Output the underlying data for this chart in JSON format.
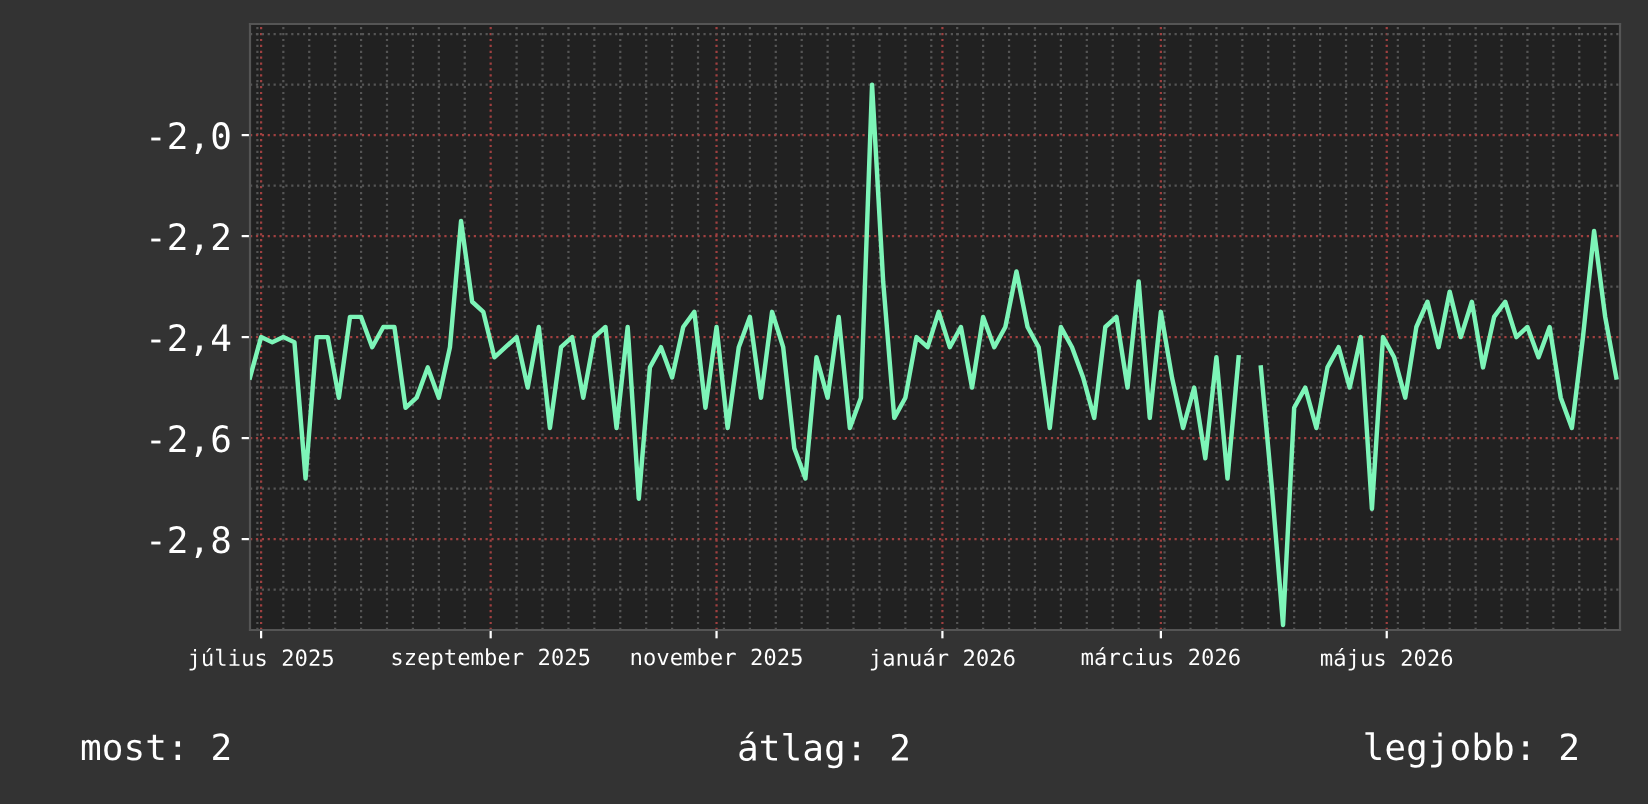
{
  "chart_data": {
    "type": "line",
    "x": [
      "2025-06-28",
      "2025-07-01",
      "2025-07-04",
      "2025-07-07",
      "2025-07-10",
      "2025-07-13",
      "2025-07-16",
      "2025-07-19",
      "2025-07-22",
      "2025-07-25",
      "2025-07-28",
      "2025-07-31",
      "2025-08-03",
      "2025-08-06",
      "2025-08-09",
      "2025-08-12",
      "2025-08-15",
      "2025-08-18",
      "2025-08-21",
      "2025-08-24",
      "2025-08-27",
      "2025-08-30",
      "2025-09-02",
      "2025-09-05",
      "2025-09-08",
      "2025-09-11",
      "2025-09-14",
      "2025-09-17",
      "2025-09-20",
      "2025-09-23",
      "2025-09-26",
      "2025-09-29",
      "2025-10-02",
      "2025-10-05",
      "2025-10-08",
      "2025-10-11",
      "2025-10-14",
      "2025-10-17",
      "2025-10-20",
      "2025-10-23",
      "2025-10-26",
      "2025-10-29",
      "2025-11-01",
      "2025-11-04",
      "2025-11-07",
      "2025-11-10",
      "2025-11-13",
      "2025-11-16",
      "2025-11-19",
      "2025-11-22",
      "2025-11-25",
      "2025-11-28",
      "2025-12-01",
      "2025-12-04",
      "2025-12-07",
      "2025-12-10",
      "2025-12-13",
      "2025-12-16",
      "2025-12-19",
      "2025-12-22",
      "2025-12-25",
      "2025-12-28",
      "2025-12-31",
      "2026-01-03",
      "2026-01-06",
      "2026-01-09",
      "2026-01-12",
      "2026-01-15",
      "2026-01-18",
      "2026-01-21",
      "2026-01-24",
      "2026-01-27",
      "2026-01-30",
      "2026-02-02",
      "2026-02-05",
      "2026-02-08",
      "2026-02-11",
      "2026-02-14",
      "2026-02-17",
      "2026-02-20",
      "2026-02-23",
      "2026-02-26",
      "2026-03-01",
      "2026-03-04",
      "2026-03-07",
      "2026-03-10",
      "2026-03-13",
      "2026-03-16",
      "2026-03-19",
      "2026-03-22",
      "2026-03-25",
      "2026-03-28",
      "2026-03-31",
      "2026-04-03",
      "2026-04-06",
      "2026-04-09",
      "2026-04-12",
      "2026-04-15",
      "2026-04-18",
      "2026-04-21",
      "2026-04-24",
      "2026-04-27",
      "2026-04-30",
      "2026-05-03",
      "2026-05-06",
      "2026-05-09",
      "2026-05-12",
      "2026-05-15",
      "2026-05-18",
      "2026-05-21",
      "2026-05-24",
      "2026-05-27",
      "2026-05-30",
      "2026-06-02",
      "2026-06-05",
      "2026-06-08",
      "2026-06-11",
      "2026-06-14",
      "2026-06-17",
      "2026-06-20",
      "2026-06-23",
      "2026-06-26",
      "2026-06-29",
      "2026-07-02"
    ],
    "series": [
      {
        "color": "#7df5b8",
        "values": [
          -2.48,
          -2.4,
          -2.41,
          -2.4,
          -2.41,
          -2.68,
          -2.4,
          -2.4,
          -2.52,
          -2.36,
          -2.36,
          -2.42,
          -2.38,
          -2.38,
          -2.54,
          -2.52,
          -2.46,
          -2.52,
          -2.42,
          -2.17,
          -2.33,
          -2.35,
          -2.44,
          -2.42,
          -2.4,
          -2.5,
          -2.38,
          -2.58,
          -2.42,
          -2.4,
          -2.52,
          -2.4,
          -2.38,
          -2.58,
          -2.38,
          -2.72,
          -2.46,
          -2.42,
          -2.48,
          -2.38,
          -2.35,
          -2.54,
          -2.38,
          -2.58,
          -2.42,
          -2.36,
          -2.52,
          -2.35,
          -2.42,
          -2.62,
          -2.68,
          -2.44,
          -2.52,
          -2.36,
          -2.58,
          -2.52,
          -1.9,
          -2.29,
          -2.56,
          -2.52,
          -2.4,
          -2.42,
          -2.35,
          -2.42,
          -2.38,
          -2.5,
          -2.36,
          -2.42,
          -2.38,
          -2.27,
          -2.38,
          -2.42,
          -2.58,
          -2.38,
          -2.42,
          -2.48,
          -2.56,
          -2.38,
          -2.36,
          -2.5,
          -2.29,
          -2.56,
          -2.35,
          -2.48,
          -2.58,
          -2.5,
          -2.64,
          -2.44,
          -2.68,
          -2.44,
          null,
          -2.46,
          -2.7,
          -2.97,
          -2.54,
          -2.5,
          -2.58,
          -2.46,
          -2.42,
          -2.5,
          -2.4,
          -2.74,
          -2.4,
          -2.44,
          -2.52,
          -2.38,
          -2.33,
          -2.42,
          -2.31,
          -2.4,
          -2.33,
          -2.46,
          -2.36,
          -2.33,
          -2.4,
          -2.38,
          -2.44,
          -2.38,
          -2.52,
          -2.58,
          -2.4,
          -2.19,
          -2.36,
          -2.48
        ]
      }
    ],
    "xlim": [
      "2025-06-28",
      "2026-07-03"
    ],
    "xticks": [
      {
        "value": "2025-07-01",
        "label": "július 2025"
      },
      {
        "value": "2025-09-01",
        "label": "szeptember 2025"
      },
      {
        "value": "2025-11-01",
        "label": "november 2025"
      },
      {
        "value": "2026-01-01",
        "label": "január 2026"
      },
      {
        "value": "2026-03-01",
        "label": "március 2026"
      },
      {
        "value": "2026-05-01",
        "label": "május 2026"
      }
    ],
    "ylim": [
      -2.98,
      -1.78
    ],
    "yticks": [
      {
        "value": -2.8,
        "label": "-2,8"
      },
      {
        "value": -2.6,
        "label": "-2,6"
      },
      {
        "value": -2.4,
        "label": "-2,4"
      },
      {
        "value": -2.2,
        "label": "-2,2"
      },
      {
        "value": -2.0,
        "label": "-2,0"
      }
    ],
    "grid": true,
    "annotations": [
      "most: 2",
      "átlag: 2",
      "legjobb: 2"
    ]
  }
}
